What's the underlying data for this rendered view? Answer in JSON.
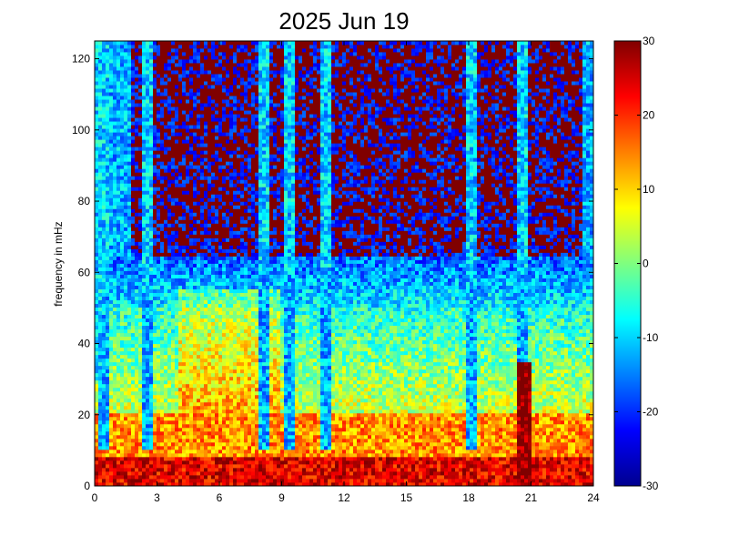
{
  "chart_data": {
    "type": "heatmap",
    "title": "2025 Jun 19",
    "xlabel": "",
    "ylabel": "frequency in mHz",
    "xlim": [
      0,
      24
    ],
    "ylim": [
      0,
      125
    ],
    "x_ticks": [
      "0",
      "3",
      "6",
      "9",
      "12",
      "15",
      "18",
      "21",
      "24"
    ],
    "y_ticks": [
      "0",
      "20",
      "40",
      "60",
      "80",
      "100",
      "120"
    ],
    "colorbar": {
      "colormap": "jet",
      "range": [
        -30,
        30
      ],
      "ticks": [
        "-30",
        "-20",
        "-10",
        "0",
        "10",
        "20",
        "30"
      ]
    },
    "grid": false,
    "legend": "none",
    "description_of_field": {
      "strong_low_frequency_band_mHz": [
        0,
        8
      ],
      "warm_region_hours": [
        4,
        9
      ],
      "warm_region_mHz": [
        20,
        55
      ],
      "quiet_high_frequency_region_mHz": [
        60,
        125
      ],
      "vertical_streak_hours": [
        0.5,
        2.5,
        8.2,
        9.3,
        11.1,
        18.1,
        20.6
      ],
      "strong_event_hour": 20.6
    }
  }
}
